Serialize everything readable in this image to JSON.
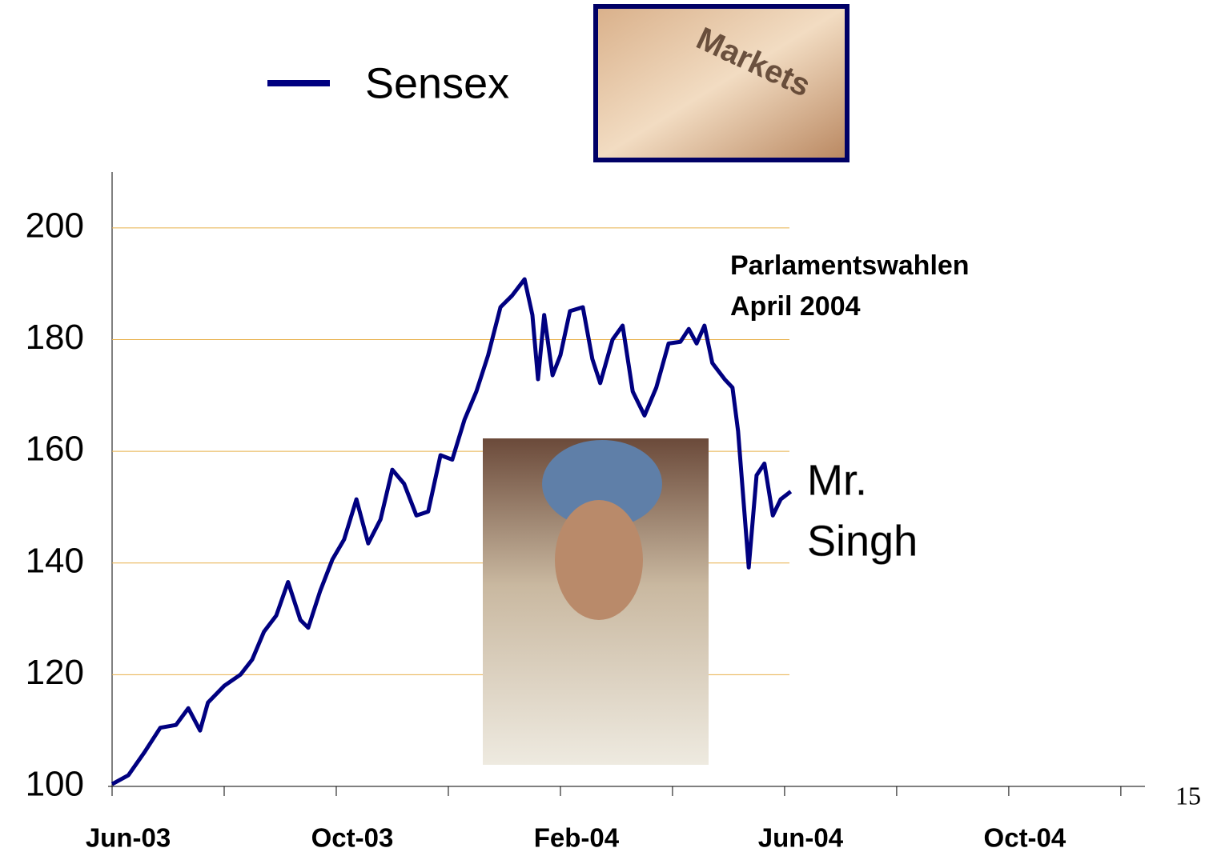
{
  "chart_data": {
    "type": "line",
    "legend": "Sensex",
    "annotations": [
      "Parlamentswahlen",
      "April 2004"
    ],
    "photo_caption": [
      "Mr.",
      "Singh"
    ],
    "page_number": "15",
    "xlim": [
      0,
      18.43
    ],
    "xticks": [
      {
        "value": 0,
        "label": "Jun-03"
      },
      {
        "value": 2,
        "label": null
      },
      {
        "value": 4,
        "label": "Oct-03"
      },
      {
        "value": 6,
        "label": null
      },
      {
        "value": 8,
        "label": "Feb-04"
      },
      {
        "value": 10,
        "label": null
      },
      {
        "value": 12,
        "label": "Jun-04"
      },
      {
        "value": 14,
        "label": null
      },
      {
        "value": 16,
        "label": "Oct-04"
      },
      {
        "value": 18,
        "label": null
      }
    ],
    "ylim": [
      100,
      210
    ],
    "yticks": [
      100,
      120,
      140,
      160,
      180,
      200
    ],
    "grid": true,
    "grid_color": "#e8b04a",
    "series": [
      {
        "name": "Sensex",
        "color": "#000080",
        "x": [
          0,
          0.29,
          0.57,
          0.86,
          1.14,
          1.36,
          1.57,
          1.71,
          2,
          2.29,
          2.5,
          2.71,
          2.93,
          3.14,
          3.36,
          3.5,
          3.71,
          3.93,
          4.14,
          4.36,
          4.57,
          4.79,
          5,
          5.21,
          5.43,
          5.64,
          5.86,
          6.07,
          6.29,
          6.5,
          6.71,
          6.93,
          7.14,
          7.36,
          7.5,
          7.6,
          7.71,
          7.86,
          8,
          8.17,
          8.4,
          8.57,
          8.71,
          8.93,
          9.11,
          9.29,
          9.5,
          9.71,
          9.93,
          10.14,
          10.29,
          10.43,
          10.57,
          10.71,
          10.93,
          11.07,
          11.17,
          11.36,
          11.5,
          11.64,
          11.79,
          11.93,
          12.11
        ],
        "values": [
          100.4,
          102,
          106,
          110.5,
          111,
          114,
          110,
          115,
          118,
          120,
          122.7,
          127.7,
          130.6,
          136.6,
          129.8,
          128.4,
          134.9,
          140.6,
          144.2,
          151.4,
          143.5,
          147.8,
          156.7,
          154.2,
          148.5,
          149.2,
          159.3,
          158.5,
          165.7,
          170.7,
          177.2,
          185.8,
          187.9,
          190.8,
          184.4,
          172.9,
          184.4,
          173.6,
          177.2,
          185.1,
          185.8,
          176.5,
          172.2,
          180,
          182.5,
          170.7,
          166.4,
          171.4,
          179.3,
          179.6,
          181.9,
          179.3,
          182.5,
          175.8,
          172.9,
          171.4,
          163.6,
          139.2,
          155.7,
          157.8,
          148.5,
          151.4,
          152.8
        ]
      }
    ]
  }
}
